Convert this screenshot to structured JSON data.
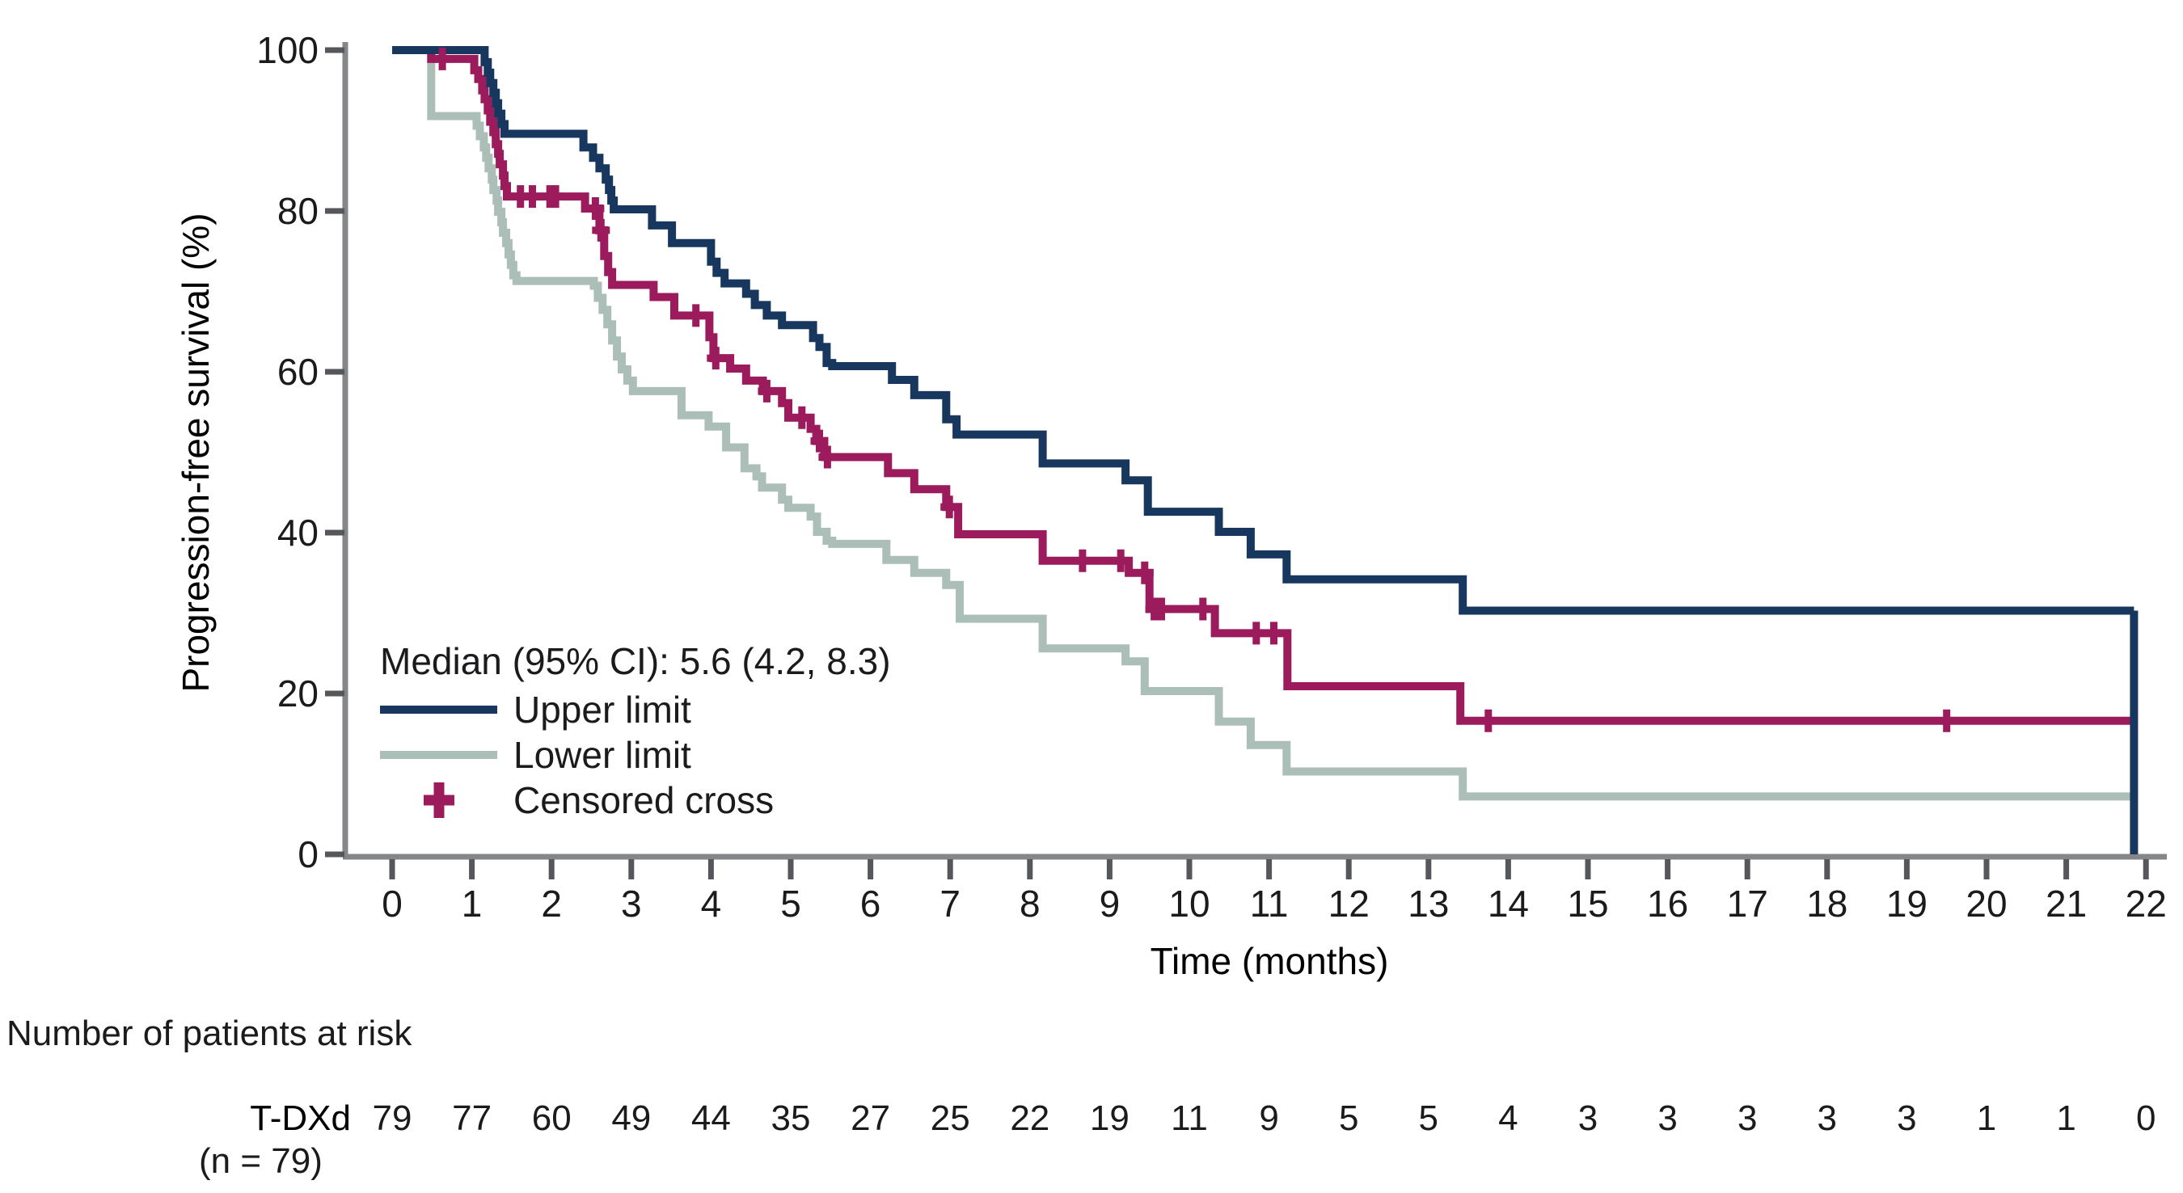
{
  "colors": {
    "upper": "#17375E",
    "median": "#9B1B5C",
    "lower": "#ABBEB7",
    "axis_line": "#848688",
    "tick_mark": "#55575a",
    "text": "#1b1b1d"
  },
  "legend": {
    "median_text": "Median (95% CI): 5.6 (4.2, 8.3)",
    "upper_label": "Upper limit",
    "lower_label": "Lower limit",
    "censored_label": "Censored cross"
  },
  "at_risk": {
    "title": "Number of patients at risk",
    "group_label": "T-DXd",
    "group_sub": "(n = 79)",
    "values": [
      79,
      77,
      60,
      49,
      44,
      35,
      27,
      25,
      22,
      19,
      11,
      9,
      5,
      5,
      4,
      3,
      3,
      3,
      3,
      3,
      1,
      1,
      0
    ]
  },
  "chart_data": {
    "type": "line",
    "subtype": "kaplan-meier-step",
    "title": "",
    "xlabel": "Time (months)",
    "ylabel": "Progression-free survival (%)",
    "xlim": [
      0,
      22
    ],
    "ylim": [
      0,
      100
    ],
    "x_ticks": [
      0,
      1,
      2,
      3,
      4,
      5,
      6,
      7,
      8,
      9,
      10,
      11,
      12,
      13,
      14,
      15,
      16,
      17,
      18,
      19,
      20,
      21,
      22
    ],
    "y_ticks": [
      0,
      20,
      40,
      60,
      80,
      100
    ],
    "grid": false,
    "legend_position": "inside-lower-left",
    "end_time": 21.85,
    "end_drop": {
      "series": "upper_limit",
      "from": 30.3,
      "to": 0
    },
    "median_months": 5.6,
    "ci95": [
      4.2,
      8.3
    ],
    "series": [
      {
        "id": "lower_limit",
        "name": "Lower limit",
        "color_key": "lower",
        "steps": [
          [
            0,
            100
          ],
          [
            0.49,
            91.8
          ],
          [
            1.06,
            90.6
          ],
          [
            1.1,
            89.3
          ],
          [
            1.15,
            87.9
          ],
          [
            1.18,
            86.6
          ],
          [
            1.21,
            85.3
          ],
          [
            1.25,
            83.9
          ],
          [
            1.27,
            82.6
          ],
          [
            1.31,
            81.3
          ],
          [
            1.33,
            79.9
          ],
          [
            1.37,
            78.6
          ],
          [
            1.39,
            77.3
          ],
          [
            1.43,
            76.0
          ],
          [
            1.46,
            74.6
          ],
          [
            1.49,
            73.3
          ],
          [
            1.52,
            72.0
          ],
          [
            1.56,
            71.3
          ],
          [
            2.53,
            70.7
          ],
          [
            2.58,
            69.2
          ],
          [
            2.64,
            67.7
          ],
          [
            2.7,
            65.9
          ],
          [
            2.76,
            63.9
          ],
          [
            2.82,
            61.9
          ],
          [
            2.88,
            60.3
          ],
          [
            2.95,
            58.9
          ],
          [
            3.02,
            57.6
          ],
          [
            3.63,
            54.6
          ],
          [
            3.97,
            53.2
          ],
          [
            4.19,
            50.6
          ],
          [
            4.42,
            48.0
          ],
          [
            4.57,
            47.0
          ],
          [
            4.64,
            45.6
          ],
          [
            4.89,
            44.1
          ],
          [
            4.97,
            43.1
          ],
          [
            5.25,
            42.0
          ],
          [
            5.33,
            40.1
          ],
          [
            5.45,
            39.0
          ],
          [
            5.52,
            38.6
          ],
          [
            6.2,
            36.6
          ],
          [
            6.55,
            35.0
          ],
          [
            6.95,
            33.5
          ],
          [
            7.12,
            29.3
          ],
          [
            8.16,
            25.6
          ],
          [
            9.2,
            24.0
          ],
          [
            9.44,
            20.3
          ],
          [
            10.37,
            16.5
          ],
          [
            10.77,
            13.6
          ],
          [
            11.22,
            10.3
          ],
          [
            13.43,
            7.2
          ]
        ]
      },
      {
        "id": "median",
        "name": "Median (point estimate)",
        "color_key": "median",
        "steps": [
          [
            0,
            100
          ],
          [
            0.49,
            98.9
          ],
          [
            1.03,
            97.5
          ],
          [
            1.08,
            96.4
          ],
          [
            1.13,
            95.0
          ],
          [
            1.16,
            93.9
          ],
          [
            1.2,
            92.5
          ],
          [
            1.23,
            91.1
          ],
          [
            1.27,
            89.8
          ],
          [
            1.3,
            88.3
          ],
          [
            1.33,
            87.1
          ],
          [
            1.35,
            85.8
          ],
          [
            1.39,
            84.4
          ],
          [
            1.41,
            83.1
          ],
          [
            1.44,
            81.8
          ],
          [
            2.42,
            80.3
          ],
          [
            2.6,
            77.6
          ],
          [
            2.66,
            74.4
          ],
          [
            2.71,
            72.4
          ],
          [
            2.76,
            70.8
          ],
          [
            3.28,
            69.3
          ],
          [
            3.54,
            67.0
          ],
          [
            3.98,
            64.3
          ],
          [
            4.03,
            61.7
          ],
          [
            4.24,
            60.4
          ],
          [
            4.44,
            58.9
          ],
          [
            4.65,
            57.6
          ],
          [
            4.89,
            56.1
          ],
          [
            4.97,
            54.3
          ],
          [
            5.25,
            52.9
          ],
          [
            5.32,
            51.4
          ],
          [
            5.42,
            49.4
          ],
          [
            6.22,
            47.4
          ],
          [
            6.55,
            45.4
          ],
          [
            6.95,
            43.2
          ],
          [
            7.1,
            39.8
          ],
          [
            8.16,
            36.5
          ],
          [
            9.24,
            35.0
          ],
          [
            9.5,
            30.5
          ],
          [
            10.32,
            27.5
          ],
          [
            11.23,
            20.9
          ],
          [
            13.4,
            16.6
          ]
        ],
        "censor_times": [
          0.63,
          1.61,
          1.76,
          1.98,
          2.05,
          2.55,
          2.62,
          3.81,
          4.06,
          4.7,
          5.14,
          5.36,
          5.46,
          6.99,
          8.66,
          9.14,
          9.44,
          9.56,
          9.65,
          10.17,
          10.84,
          11.06,
          13.75,
          19.5
        ]
      },
      {
        "id": "upper_limit",
        "name": "Upper limit",
        "color_key": "upper",
        "steps": [
          [
            0,
            100
          ],
          [
            1.16,
            98.5
          ],
          [
            1.2,
            97.2
          ],
          [
            1.23,
            95.9
          ],
          [
            1.27,
            94.7
          ],
          [
            1.3,
            93.4
          ],
          [
            1.33,
            92.1
          ],
          [
            1.37,
            90.8
          ],
          [
            1.41,
            89.6
          ],
          [
            2.4,
            87.9
          ],
          [
            2.52,
            86.6
          ],
          [
            2.6,
            85.3
          ],
          [
            2.68,
            83.9
          ],
          [
            2.72,
            82.6
          ],
          [
            2.75,
            81.3
          ],
          [
            2.78,
            80.2
          ],
          [
            3.26,
            78.2
          ],
          [
            3.51,
            76.0
          ],
          [
            4.0,
            73.7
          ],
          [
            4.07,
            72.3
          ],
          [
            4.17,
            71.0
          ],
          [
            4.44,
            69.7
          ],
          [
            4.55,
            68.3
          ],
          [
            4.7,
            67.0
          ],
          [
            4.89,
            65.8
          ],
          [
            5.28,
            64.2
          ],
          [
            5.36,
            63.1
          ],
          [
            5.45,
            61.1
          ],
          [
            5.52,
            60.7
          ],
          [
            6.27,
            59.0
          ],
          [
            6.55,
            57.1
          ],
          [
            6.95,
            54.1
          ],
          [
            7.08,
            52.2
          ],
          [
            8.16,
            48.6
          ],
          [
            9.2,
            46.5
          ],
          [
            9.48,
            42.6
          ],
          [
            10.37,
            40.1
          ],
          [
            10.77,
            37.3
          ],
          [
            11.22,
            34.2
          ],
          [
            13.43,
            30.3
          ]
        ]
      }
    ]
  }
}
